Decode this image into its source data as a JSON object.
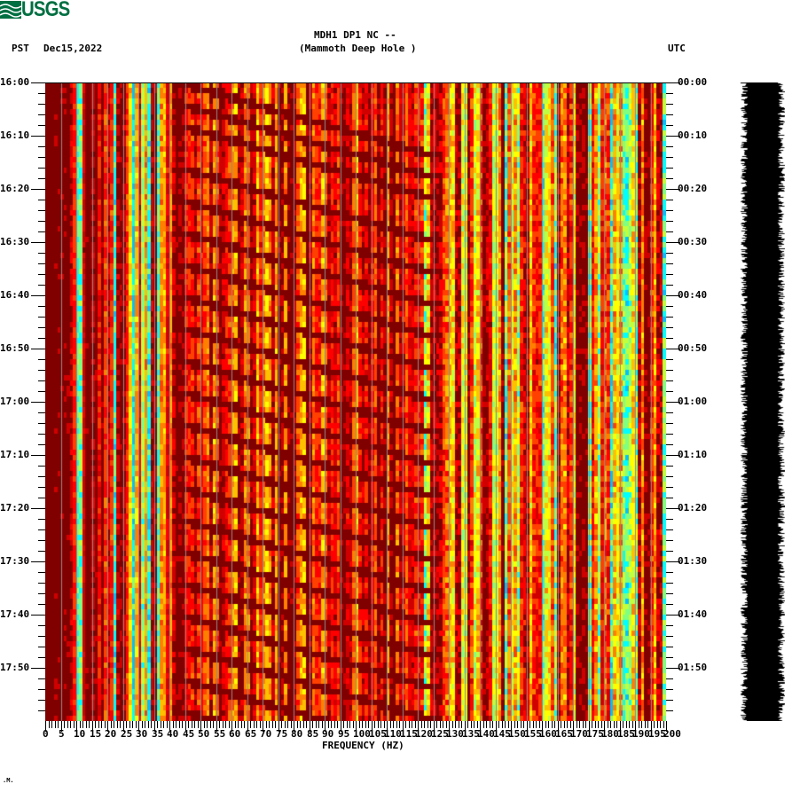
{
  "header": {
    "logo_text": "USGS",
    "logo_color": "#006f41",
    "station_line": "MDH1 DP1 NC --",
    "station_name": "(Mammoth Deep Hole )",
    "left_timezone": "PST",
    "date": "Dec15,2022",
    "right_timezone": "UTC"
  },
  "footer": {
    "mark": ".M."
  },
  "chart_data": {
    "type": "heatmap",
    "title": "MDH1 DP1 NC -- (Mammoth Deep Hole )",
    "subtitle": "Dec15,2022",
    "xlabel": "FREQUENCY (HZ)",
    "ylabel_left": "PST",
    "ylabel_right": "UTC",
    "xlim": [
      0,
      200
    ],
    "x_ticks": [
      0,
      5,
      10,
      15,
      20,
      25,
      30,
      35,
      40,
      45,
      50,
      55,
      60,
      65,
      70,
      75,
      80,
      85,
      90,
      95,
      100,
      105,
      110,
      115,
      120,
      125,
      130,
      135,
      140,
      145,
      150,
      155,
      160,
      165,
      170,
      175,
      180,
      185,
      190,
      195,
      200
    ],
    "x_tick_labels": [
      "0",
      "5",
      "10",
      "15",
      "20",
      "25",
      "30",
      "35",
      "40",
      "45",
      "50",
      "55",
      "60",
      "65",
      "70",
      "75",
      "80",
      "85",
      "90",
      "95",
      "100",
      "105",
      "110",
      "115",
      "120",
      "125",
      "130",
      "135",
      "140",
      "145",
      "150",
      "155",
      "160",
      "165",
      "170",
      "175",
      "180",
      "185",
      "190",
      "195",
      "200"
    ],
    "minor_x_tick_step_hz": 1,
    "y_ticks_left": [
      "16:00",
      "16:10",
      "16:20",
      "16:30",
      "16:40",
      "16:50",
      "17:00",
      "17:10",
      "17:20",
      "17:30",
      "17:40",
      "17:50"
    ],
    "y_ticks_right": [
      "00:00",
      "00:10",
      "00:20",
      "00:30",
      "00:40",
      "00:50",
      "01:00",
      "01:10",
      "01:20",
      "01:30",
      "01:40",
      "01:50"
    ],
    "minor_y_tick_step_min": 2,
    "time_span_minutes": 120,
    "grid": {
      "vertical_every_hz": 5,
      "color": "#8c8c8c"
    },
    "colormap": [
      "#0000ff",
      "#0080ff",
      "#00c0ff",
      "#00ffff",
      "#80ff80",
      "#c0ff40",
      "#ffff00",
      "#ffc000",
      "#ff8000",
      "#ff4000",
      "#ff0000",
      "#d00000",
      "#800000"
    ],
    "description": "Spectrogram: intense dark-red energy 0-25 Hz; strong red/orange 25-120 Hz with recurring descending diagonal chirp bands (dark red) roughly every 5-8 minutes from ~45 Hz to ~125 Hz; cooler cyan/green/yellow with narrow yellow/dark-red harmonic lines 125-200 Hz.",
    "seed": 17,
    "chirp_starts_min": [
      0,
      4,
      8,
      16,
      22,
      28,
      34,
      40,
      46,
      52,
      58,
      64,
      70,
      76,
      82,
      88,
      94,
      100,
      106,
      112,
      118
    ]
  },
  "waveform": {
    "color": "#000000",
    "label": "seismogram trace"
  }
}
